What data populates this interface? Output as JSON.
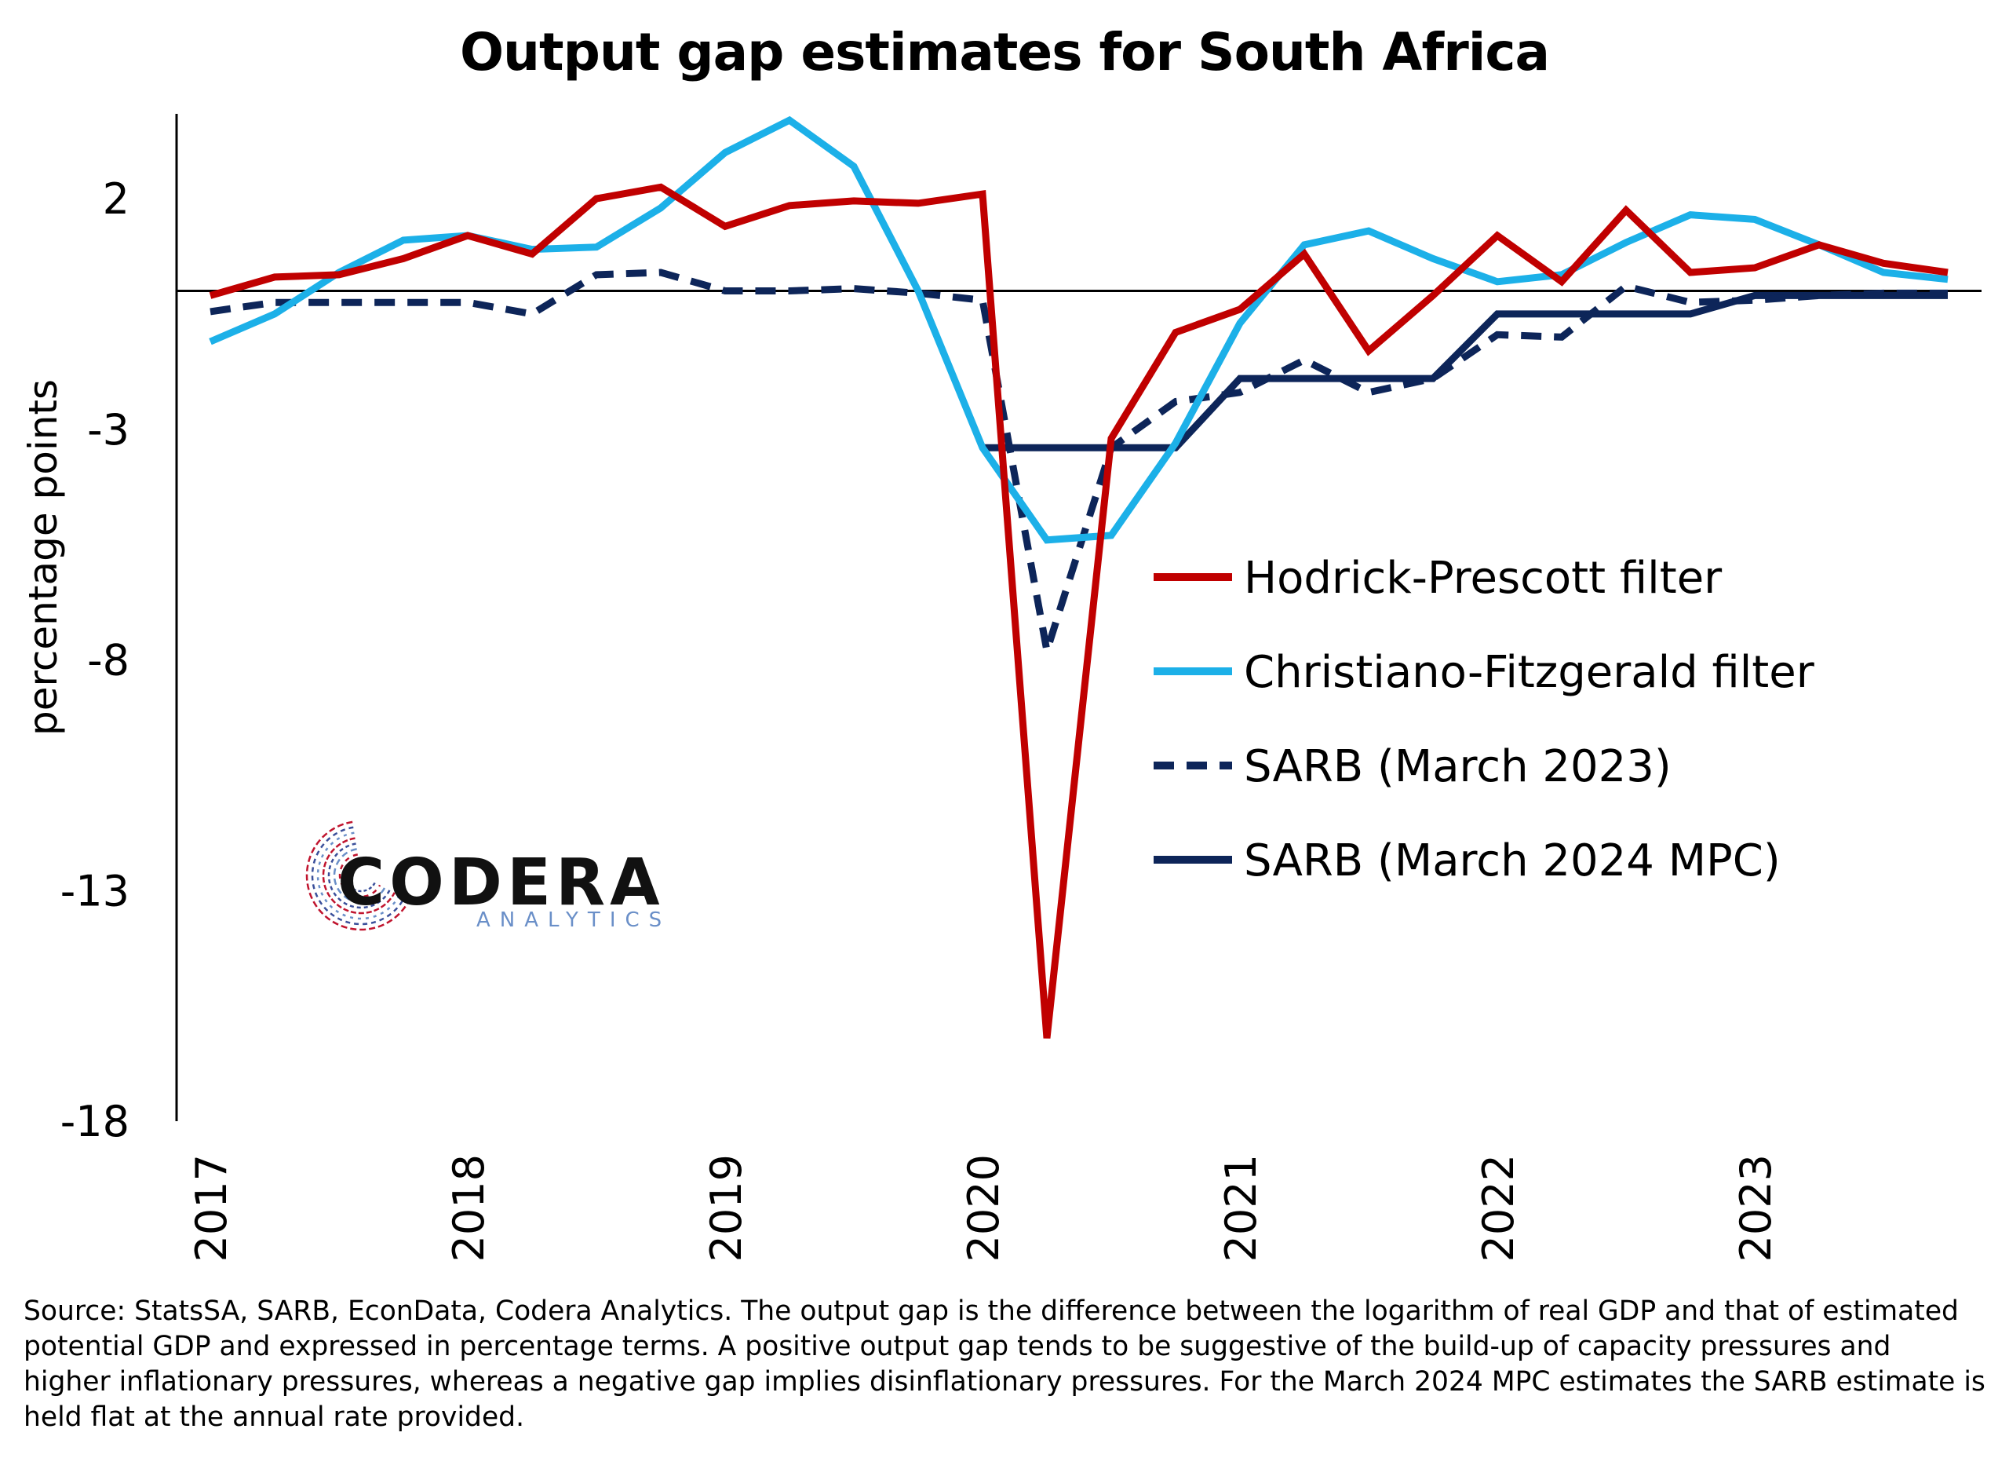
{
  "chart_data": {
    "type": "line",
    "title": "Output gap estimates for South Africa",
    "ylabel": "percentage points",
    "xlabel": "",
    "ylim": [
      -18,
      4
    ],
    "yticks": [
      "2",
      "-3",
      "-8",
      "-13",
      "-18"
    ],
    "ytick_values": [
      2,
      -3,
      -8,
      -13,
      -18
    ],
    "xticks": [
      "2017",
      "2018",
      "2019",
      "2020",
      "2021",
      "2022",
      "2023"
    ],
    "xtick_values": [
      2017,
      2018,
      2019,
      2020,
      2021,
      2022,
      2023
    ],
    "xlim": [
      2016.9,
      2023.85
    ],
    "zero_line": true,
    "grid": false,
    "legend_position": "right-middle",
    "series": [
      {
        "name": "Hodrick-Prescott filter",
        "color": "#c00000",
        "style": "solid",
        "x": [
          2017,
          2017.25,
          2017.5,
          2017.75,
          2018,
          2018.25,
          2018.5,
          2018.75,
          2019,
          2019.25,
          2019.5,
          2019.75,
          2020,
          2020.25,
          2020.5,
          2020.75,
          2021,
          2021.25,
          2021.5,
          2021.75,
          2022,
          2022.25,
          2022.5,
          2022.75,
          2023,
          2023.25,
          2023.5,
          2023.75
        ],
        "values": [
          -0.1,
          0.3,
          0.35,
          0.7,
          1.2,
          0.8,
          2.0,
          2.25,
          1.4,
          1.85,
          1.95,
          1.9,
          2.1,
          -16.2,
          -3.2,
          -0.9,
          -0.4,
          0.8,
          -1.3,
          -0.1,
          1.2,
          0.2,
          1.75,
          0.4,
          0.5,
          1.0,
          0.6,
          0.4
        ]
      },
      {
        "name": "Christiano-Fitzgerald filter",
        "color": "#1cb0e8",
        "style": "solid",
        "x": [
          2017,
          2017.25,
          2017.5,
          2017.75,
          2018,
          2018.25,
          2018.5,
          2018.75,
          2019,
          2019.25,
          2019.5,
          2019.75,
          2020,
          2020.25,
          2020.5,
          2020.75,
          2021,
          2021.25,
          2021.5,
          2021.75,
          2022,
          2022.25,
          2022.5,
          2022.75,
          2023,
          2023.25,
          2023.5,
          2023.75
        ],
        "values": [
          -1.1,
          -0.5,
          0.4,
          1.1,
          1.2,
          0.9,
          0.95,
          1.8,
          3.0,
          3.7,
          2.7,
          0.0,
          -3.4,
          -5.4,
          -5.3,
          -3.3,
          -0.7,
          1.0,
          1.3,
          0.7,
          0.2,
          0.35,
          1.05,
          1.65,
          1.55,
          1.0,
          0.4,
          0.25
        ]
      },
      {
        "name": "SARB (March 2023)",
        "color": "#0d2559",
        "style": "dashed",
        "x": [
          2017,
          2017.25,
          2017.5,
          2017.75,
          2018,
          2018.25,
          2018.5,
          2018.75,
          2019,
          2019.25,
          2019.5,
          2019.75,
          2020,
          2020.25,
          2020.5,
          2020.75,
          2021,
          2021.25,
          2021.5,
          2021.75,
          2022,
          2022.25,
          2022.5,
          2022.75,
          2023,
          2023.25,
          2023.5,
          2023.75
        ],
        "values": [
          -0.45,
          -0.25,
          -0.25,
          -0.25,
          -0.25,
          -0.5,
          0.35,
          0.4,
          0.0,
          0.0,
          0.05,
          -0.05,
          -0.2,
          -7.8,
          -3.4,
          -2.4,
          -2.2,
          -1.5,
          -2.2,
          -1.9,
          -0.95,
          -1.0,
          0.1,
          -0.25,
          -0.2,
          -0.1,
          -0.05,
          -0.05
        ]
      },
      {
        "name": "SARB (March 2024 MPC)",
        "color": "#0d2559",
        "style": "solid",
        "x": [
          2020,
          2020.25,
          2020.5,
          2020.75,
          2021,
          2021.25,
          2021.5,
          2021.75,
          2022,
          2022.25,
          2022.5,
          2022.75,
          2023,
          2023.25,
          2023.5,
          2023.75
        ],
        "values": [
          -3.4,
          -3.4,
          -3.4,
          -3.4,
          -1.9,
          -1.9,
          -1.9,
          -1.9,
          -0.5,
          -0.5,
          -0.5,
          -0.5,
          -0.1,
          -0.1,
          -0.1,
          -0.1
        ]
      }
    ],
    "source_note": "Source: StatsSA, SARB, EconData, Codera Analytics. The output gap is the difference between the logarithm of real GDP and that of estimated potential GDP and expressed in percentage terms. A positive output gap tends to be suggestive of the build-up of capacity pressures and higher inflationary pressures, whereas a negative gap implies disinflationary pressures. For the March 2024 MPC estimates the SARB estimate is held flat at the annual rate provided."
  },
  "logo": {
    "word": "CODERA",
    "sub": "ANALYTICS",
    "colors": [
      "#c0142e",
      "#6a8fc8",
      "#3a4f9a"
    ]
  }
}
